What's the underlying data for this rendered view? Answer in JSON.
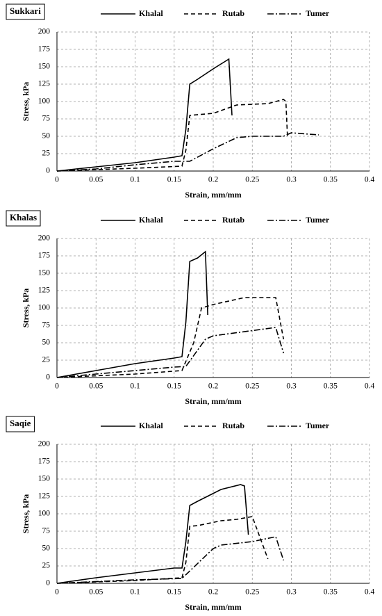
{
  "chart_data": [
    {
      "type": "line",
      "title": "Sukkari",
      "xlabel": "Strain, mm/mm",
      "ylabel": "Stress, kPa",
      "xlim": [
        0,
        0.4
      ],
      "ylim": [
        0,
        200
      ],
      "xticks": [
        0,
        0.05,
        0.1,
        0.15,
        0.2,
        0.25,
        0.3,
        0.35,
        0.4
      ],
      "yticks": [
        0,
        25,
        50,
        75,
        100,
        125,
        150,
        175,
        200
      ],
      "grid": true,
      "series": [
        {
          "name": "Khalal",
          "color": "#000000",
          "linestyle": "solid",
          "x": [
            0,
            0.05,
            0.1,
            0.15,
            0.16,
            0.165,
            0.17,
            0.18,
            0.2,
            0.22,
            0.224
          ],
          "values": [
            0,
            6,
            12,
            20,
            22,
            60,
            125,
            132,
            147,
            161,
            80
          ]
        },
        {
          "name": "Rutab",
          "color": "#000000",
          "linestyle": "dashed",
          "x": [
            0,
            0.1,
            0.16,
            0.165,
            0.17,
            0.2,
            0.23,
            0.27,
            0.29,
            0.293,
            0.295
          ],
          "values": [
            0,
            4,
            7,
            30,
            80,
            83,
            95,
            97,
            103,
            100,
            50
          ]
        },
        {
          "name": "Tumer",
          "color": "#000000",
          "linestyle": "dashdot",
          "x": [
            0,
            0.05,
            0.1,
            0.15,
            0.17,
            0.2,
            0.23,
            0.25,
            0.29,
            0.3,
            0.335
          ],
          "values": [
            0,
            3,
            9,
            14,
            14,
            32,
            48,
            50,
            50,
            55,
            52
          ]
        }
      ]
    },
    {
      "type": "line",
      "title": "Khalas",
      "xlabel": "Strain, mm/mm",
      "ylabel": "Stress, kPa",
      "xlim": [
        0,
        0.4
      ],
      "ylim": [
        0,
        200
      ],
      "xticks": [
        0,
        0.05,
        0.1,
        0.15,
        0.2,
        0.25,
        0.3,
        0.35,
        0.4
      ],
      "yticks": [
        0,
        25,
        50,
        75,
        100,
        125,
        150,
        175,
        200
      ],
      "grid": true,
      "series": [
        {
          "name": "Khalal",
          "color": "#000000",
          "linestyle": "solid",
          "x": [
            0,
            0.05,
            0.1,
            0.15,
            0.16,
            0.165,
            0.17,
            0.18,
            0.19,
            0.193
          ],
          "values": [
            0,
            10,
            20,
            28,
            30,
            80,
            167,
            172,
            181,
            90
          ]
        },
        {
          "name": "Rutab",
          "color": "#000000",
          "linestyle": "dashed",
          "x": [
            0,
            0.1,
            0.16,
            0.175,
            0.185,
            0.2,
            0.24,
            0.28,
            0.29
          ],
          "values": [
            0,
            5,
            10,
            50,
            100,
            105,
            115,
            115,
            55
          ]
        },
        {
          "name": "Tumer",
          "color": "#000000",
          "linestyle": "dashdot",
          "x": [
            0,
            0.05,
            0.1,
            0.15,
            0.165,
            0.19,
            0.2,
            0.28,
            0.29
          ],
          "values": [
            0,
            5,
            10,
            15,
            16,
            55,
            60,
            72,
            35
          ]
        }
      ]
    },
    {
      "type": "line",
      "title": "Saqie",
      "xlabel": "Strain, mm/mm",
      "ylabel": "Stress, kPa",
      "xlim": [
        0,
        0.4
      ],
      "ylim": [
        0,
        200
      ],
      "xticks": [
        0,
        0.05,
        0.1,
        0.15,
        0.2,
        0.25,
        0.3,
        0.35,
        0.4
      ],
      "yticks": [
        0,
        25,
        50,
        75,
        100,
        125,
        150,
        175,
        200
      ],
      "grid": true,
      "series": [
        {
          "name": "Khalal",
          "color": "#000000",
          "linestyle": "solid",
          "x": [
            0,
            0.05,
            0.1,
            0.15,
            0.16,
            0.165,
            0.17,
            0.18,
            0.21,
            0.235,
            0.24,
            0.245
          ],
          "values": [
            0,
            8,
            15,
            22,
            22,
            60,
            112,
            118,
            135,
            142,
            140,
            70
          ]
        },
        {
          "name": "Rutab",
          "color": "#000000",
          "linestyle": "dashed",
          "x": [
            0,
            0.1,
            0.16,
            0.165,
            0.17,
            0.18,
            0.21,
            0.23,
            0.25,
            0.27
          ],
          "values": [
            0,
            4,
            8,
            30,
            82,
            83,
            90,
            92,
            96,
            35
          ]
        },
        {
          "name": "Tumer",
          "color": "#000000",
          "linestyle": "dashdot",
          "x": [
            0,
            0.1,
            0.16,
            0.2,
            0.21,
            0.25,
            0.28,
            0.29
          ],
          "values": [
            0,
            5,
            7,
            50,
            55,
            60,
            67,
            33
          ]
        }
      ]
    }
  ]
}
